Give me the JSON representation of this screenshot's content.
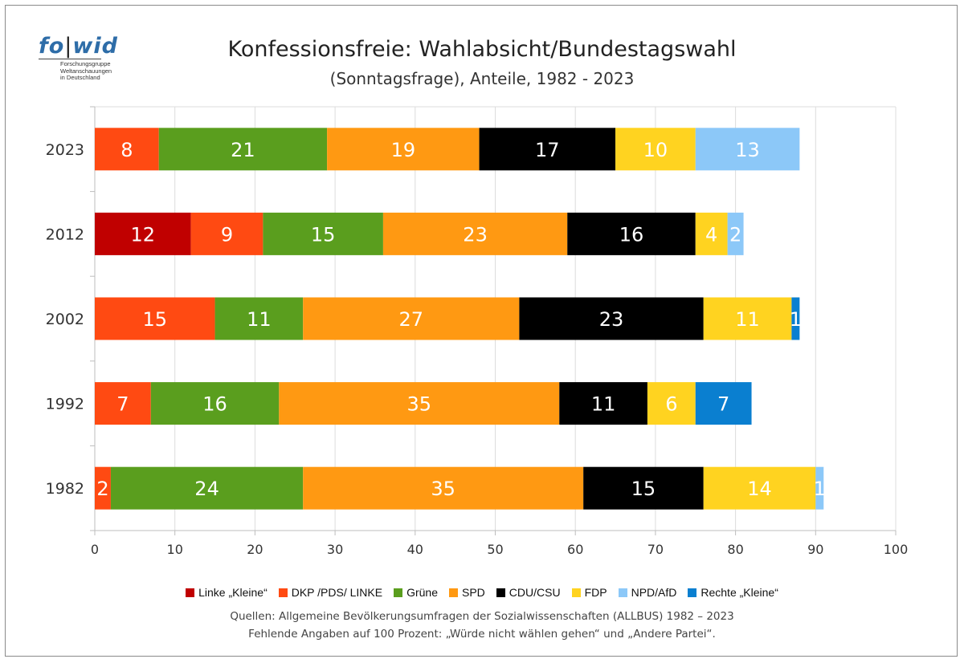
{
  "logo": {
    "word_fo": "fo",
    "word_bar": "|",
    "word_wid": "wid",
    "lines": [
      "Forschungsgruppe",
      "Weltanschauungen",
      "in Deutschland"
    ]
  },
  "title": "Konfessionsfreie: Wahlabsicht/Bundestagswahl",
  "subtitle": "(Sonntagsfrage), Anteile, 1982 - 2023",
  "chart_data": {
    "type": "bar",
    "orientation": "horizontal",
    "stacked": true,
    "categories": [
      "2023",
      "2012",
      "2002",
      "1992",
      "1982"
    ],
    "series": [
      {
        "name": "Linke „Kleine“",
        "color": "#c00000",
        "values": [
          0,
          12,
          0,
          0,
          0
        ]
      },
      {
        "name": "DKP /PDS/ LINKE",
        "color": "#ff4a12",
        "values": [
          8,
          9,
          15,
          7,
          2
        ]
      },
      {
        "name": "Grüne",
        "color": "#5a9e1e",
        "values": [
          21,
          15,
          11,
          16,
          24
        ]
      },
      {
        "name": "SPD",
        "color": "#ff9912",
        "values": [
          19,
          23,
          27,
          35,
          35
        ]
      },
      {
        "name": "CDU/CSU",
        "color": "#000000",
        "values": [
          17,
          16,
          23,
          11,
          15
        ]
      },
      {
        "name": "FDP",
        "color": "#ffd320",
        "values": [
          10,
          4,
          11,
          6,
          14
        ]
      },
      {
        "name": "NPD/AfD",
        "color": "#8cc8f8",
        "values": [
          13,
          2,
          0,
          0,
          1
        ]
      },
      {
        "name": "Rechte „Kleine“",
        "color": "#0a7fd0",
        "values": [
          0,
          0,
          1,
          7,
          0
        ]
      }
    ],
    "xlim": [
      0,
      100
    ],
    "xticks": [
      "0",
      "10",
      "20",
      "30",
      "40",
      "50",
      "60",
      "70",
      "80",
      "90",
      "100"
    ],
    "grid": true,
    "legend_position": "bottom"
  },
  "notes": [
    "Quellen: Allgemeine Bevölkerungsumfragen der Sozialwissenschaften (ALLBUS) 1982 – 2023",
    "Fehlende Angaben auf 100 Prozent: „Würde nicht wählen gehen“ und „Andere Partei“."
  ]
}
